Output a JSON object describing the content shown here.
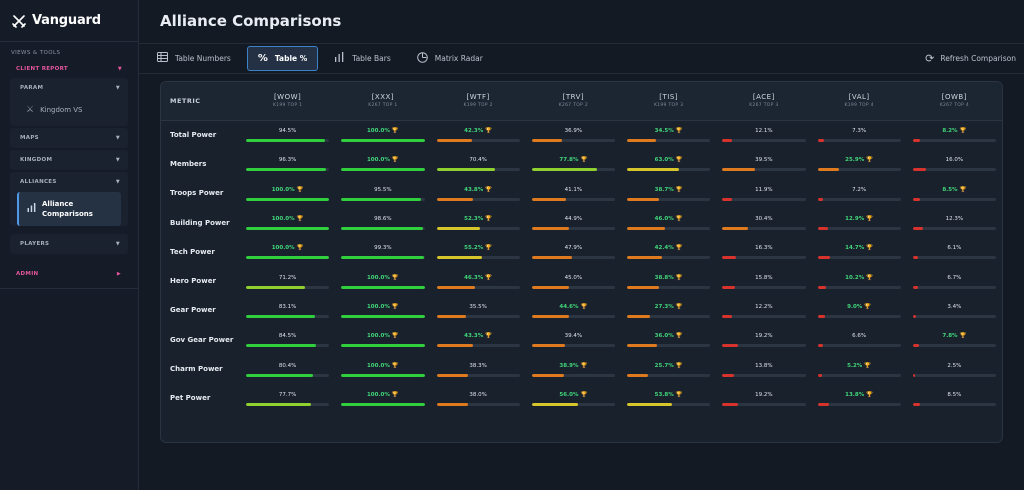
{
  "app": {
    "name": "Vanguard"
  },
  "sidebar": {
    "section_label": "VIEWS & TOOLS",
    "client_report": "CLIENT REPORT",
    "groups": [
      {
        "label": "PARAM",
        "items": [
          "Kingdom VS"
        ]
      },
      {
        "label": "MAPS"
      },
      {
        "label": "KINGDOM"
      },
      {
        "label": "ALLIANCES",
        "active_item": "Alliance Comparisons"
      },
      {
        "label": "PLAYERS"
      }
    ],
    "admin": "ADMIN"
  },
  "header": {
    "title": "Alliance Comparisons"
  },
  "toolbar": {
    "tabs": [
      {
        "label": "Table Numbers",
        "icon": "table-icon",
        "active": false
      },
      {
        "label": "Table %",
        "icon": "percent-icon",
        "active": true
      },
      {
        "label": "Table Bars",
        "icon": "bar-chart-icon",
        "active": false
      },
      {
        "label": "Matrix Radar",
        "icon": "radar-icon",
        "active": false
      }
    ],
    "refresh_label": "Refresh Comparison"
  },
  "table": {
    "metric_header": "METRIC",
    "alliances": [
      {
        "tag": "[WOW]",
        "sub": "K199 TOP 1"
      },
      {
        "tag": "[XXX]",
        "sub": "K267 TOP 1"
      },
      {
        "tag": "[WTF]",
        "sub": "K199 TOP 2"
      },
      {
        "tag": "[TRV]",
        "sub": "K267 TOP 2"
      },
      {
        "tag": "[TIS]",
        "sub": "K199 TOP 3"
      },
      {
        "tag": "[ACE]",
        "sub": "K267 TOP 3"
      },
      {
        "tag": "[VAL]",
        "sub": "K199 TOP 4"
      },
      {
        "tag": "[OWB]",
        "sub": "K267 TOP 4"
      }
    ],
    "rows": [
      {
        "metric": "Total Power",
        "cells": [
          {
            "v": "94.5%",
            "p": 94.5,
            "t": false
          },
          {
            "v": "100.0%",
            "p": 100,
            "t": true
          },
          {
            "v": "42.3%",
            "p": 42.3,
            "t": true
          },
          {
            "v": "36.9%",
            "p": 36.9,
            "t": false
          },
          {
            "v": "34.5%",
            "p": 34.5,
            "t": true
          },
          {
            "v": "12.1%",
            "p": 12.1,
            "t": false
          },
          {
            "v": "7.3%",
            "p": 7.3,
            "t": false
          },
          {
            "v": "8.2%",
            "p": 8.2,
            "t": true
          }
        ]
      },
      {
        "metric": "Members",
        "cells": [
          {
            "v": "96.3%",
            "p": 96.3,
            "t": false
          },
          {
            "v": "100.0%",
            "p": 100,
            "t": true
          },
          {
            "v": "70.4%",
            "p": 70.4,
            "t": false
          },
          {
            "v": "77.8%",
            "p": 77.8,
            "t": true
          },
          {
            "v": "63.0%",
            "p": 63.0,
            "t": true
          },
          {
            "v": "39.5%",
            "p": 39.5,
            "t": false
          },
          {
            "v": "25.9%",
            "p": 25.9,
            "t": true
          },
          {
            "v": "16.0%",
            "p": 16.0,
            "t": false
          }
        ]
      },
      {
        "metric": "Troops Power",
        "cells": [
          {
            "v": "100.0%",
            "p": 100,
            "t": true
          },
          {
            "v": "95.5%",
            "p": 95.5,
            "t": false
          },
          {
            "v": "43.8%",
            "p": 43.8,
            "t": true
          },
          {
            "v": "41.1%",
            "p": 41.1,
            "t": false
          },
          {
            "v": "38.7%",
            "p": 38.7,
            "t": true
          },
          {
            "v": "11.9%",
            "p": 11.9,
            "t": false
          },
          {
            "v": "7.2%",
            "p": 7.2,
            "t": false
          },
          {
            "v": "8.5%",
            "p": 8.5,
            "t": true
          }
        ]
      },
      {
        "metric": "Building Power",
        "cells": [
          {
            "v": "100.0%",
            "p": 100,
            "t": true
          },
          {
            "v": "98.6%",
            "p": 98.6,
            "t": false
          },
          {
            "v": "52.3%",
            "p": 52.3,
            "t": true
          },
          {
            "v": "44.9%",
            "p": 44.9,
            "t": false
          },
          {
            "v": "46.0%",
            "p": 46.0,
            "t": true
          },
          {
            "v": "30.4%",
            "p": 30.4,
            "t": false
          },
          {
            "v": "12.9%",
            "p": 12.9,
            "t": true
          },
          {
            "v": "12.3%",
            "p": 12.3,
            "t": false
          }
        ]
      },
      {
        "metric": "Tech Power",
        "cells": [
          {
            "v": "100.0%",
            "p": 100,
            "t": true
          },
          {
            "v": "99.3%",
            "p": 99.3,
            "t": false
          },
          {
            "v": "55.2%",
            "p": 55.2,
            "t": true
          },
          {
            "v": "47.9%",
            "p": 47.9,
            "t": false
          },
          {
            "v": "42.4%",
            "p": 42.4,
            "t": true
          },
          {
            "v": "16.3%",
            "p": 16.3,
            "t": false
          },
          {
            "v": "14.7%",
            "p": 14.7,
            "t": true
          },
          {
            "v": "6.1%",
            "p": 6.1,
            "t": false
          }
        ]
      },
      {
        "metric": "Hero Power",
        "cells": [
          {
            "v": "71.2%",
            "p": 71.2,
            "t": false
          },
          {
            "v": "100.0%",
            "p": 100,
            "t": true
          },
          {
            "v": "46.3%",
            "p": 46.3,
            "t": true
          },
          {
            "v": "45.0%",
            "p": 45.0,
            "t": false
          },
          {
            "v": "38.8%",
            "p": 38.8,
            "t": true
          },
          {
            "v": "15.8%",
            "p": 15.8,
            "t": false
          },
          {
            "v": "10.2%",
            "p": 10.2,
            "t": true
          },
          {
            "v": "6.7%",
            "p": 6.7,
            "t": false
          }
        ]
      },
      {
        "metric": "Gear Power",
        "cells": [
          {
            "v": "83.1%",
            "p": 83.1,
            "t": false
          },
          {
            "v": "100.0%",
            "p": 100,
            "t": true
          },
          {
            "v": "35.5%",
            "p": 35.5,
            "t": false
          },
          {
            "v": "44.6%",
            "p": 44.6,
            "t": true
          },
          {
            "v": "27.3%",
            "p": 27.3,
            "t": true
          },
          {
            "v": "12.2%",
            "p": 12.2,
            "t": false
          },
          {
            "v": "9.0%",
            "p": 9.0,
            "t": true
          },
          {
            "v": "3.4%",
            "p": 3.4,
            "t": false
          }
        ]
      },
      {
        "metric": "Gov Gear Power",
        "cells": [
          {
            "v": "84.5%",
            "p": 84.5,
            "t": false
          },
          {
            "v": "100.0%",
            "p": 100,
            "t": true
          },
          {
            "v": "43.3%",
            "p": 43.3,
            "t": true
          },
          {
            "v": "39.4%",
            "p": 39.4,
            "t": false
          },
          {
            "v": "36.0%",
            "p": 36.0,
            "t": true
          },
          {
            "v": "19.2%",
            "p": 19.2,
            "t": false
          },
          {
            "v": "6.6%",
            "p": 6.6,
            "t": false
          },
          {
            "v": "7.8%",
            "p": 7.8,
            "t": true
          }
        ]
      },
      {
        "metric": "Charm Power",
        "cells": [
          {
            "v": "80.4%",
            "p": 80.4,
            "t": false
          },
          {
            "v": "100.0%",
            "p": 100,
            "t": true
          },
          {
            "v": "38.3%",
            "p": 38.3,
            "t": false
          },
          {
            "v": "38.9%",
            "p": 38.9,
            "t": true
          },
          {
            "v": "25.7%",
            "p": 25.7,
            "t": true
          },
          {
            "v": "13.8%",
            "p": 13.8,
            "t": false
          },
          {
            "v": "5.2%",
            "p": 5.2,
            "t": true
          },
          {
            "v": "2.5%",
            "p": 2.5,
            "t": false
          }
        ]
      },
      {
        "metric": "Pet Power",
        "cells": [
          {
            "v": "77.7%",
            "p": 77.7,
            "t": false
          },
          {
            "v": "100.0%",
            "p": 100,
            "t": true
          },
          {
            "v": "38.0%",
            "p": 38.0,
            "t": false
          },
          {
            "v": "56.0%",
            "p": 56.0,
            "t": true
          },
          {
            "v": "53.8%",
            "p": 53.8,
            "t": true
          },
          {
            "v": "19.2%",
            "p": 19.2,
            "t": false
          },
          {
            "v": "13.8%",
            "p": 13.8,
            "t": true
          },
          {
            "v": "8.5%",
            "p": 8.5,
            "t": false
          }
        ]
      }
    ]
  },
  "colors": {
    "accent": "#3c82c8",
    "pink": "#e4559c",
    "top_text": "#41d679",
    "trophy": "#f3c33a",
    "bar_green": "#2fcf3e",
    "bar_lime": "#8fd12f",
    "bar_yellow": "#d6c52b",
    "bar_orange": "#df7a1f",
    "bar_red": "#d8322c"
  }
}
